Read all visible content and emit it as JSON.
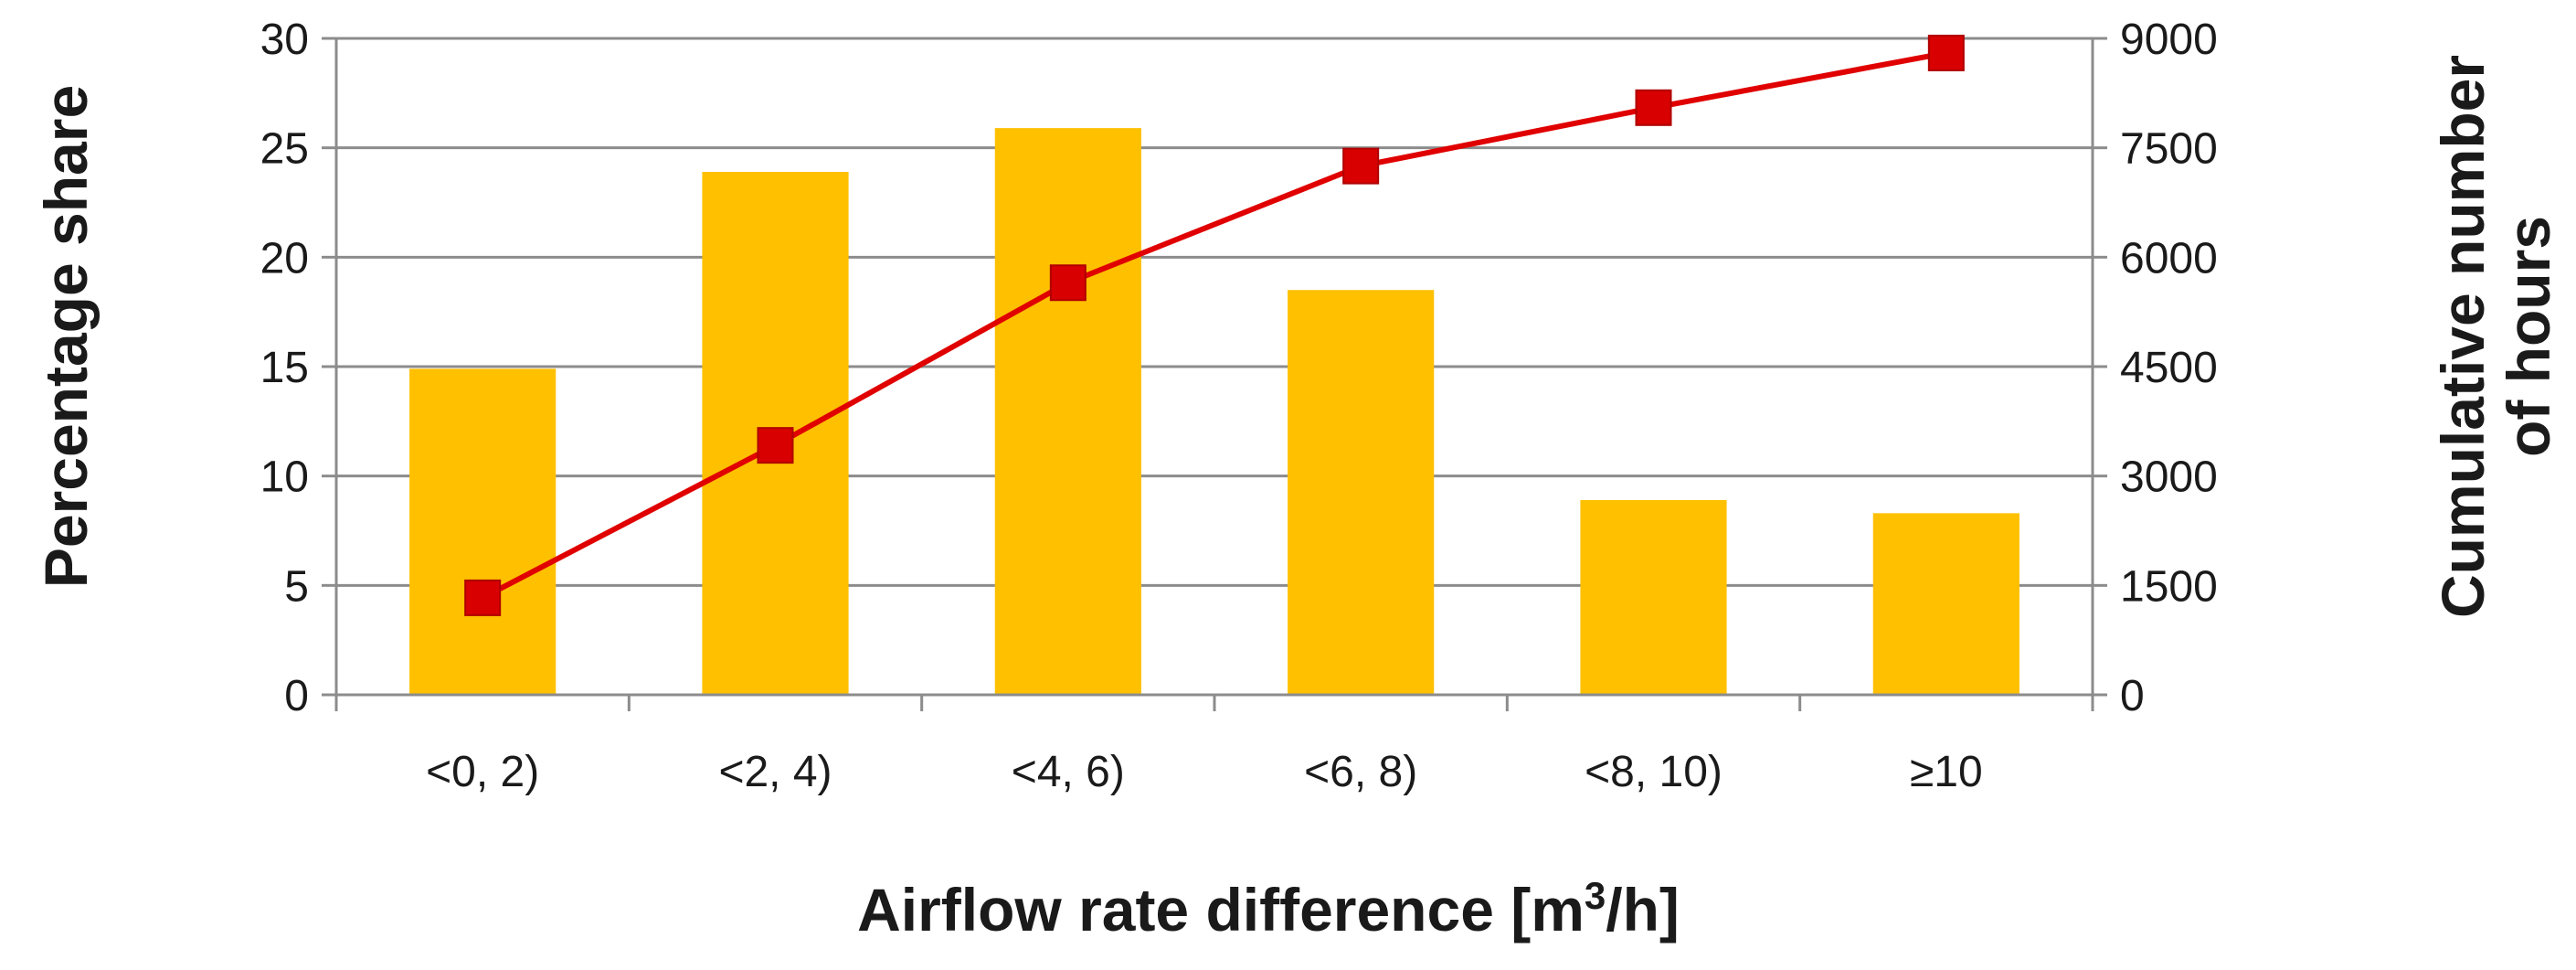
{
  "chart_data": {
    "type": "bar",
    "categories": [
      "<0, 2)",
      "<2, 4)",
      "<4, 6)",
      "<6, 8)",
      "<8, 10)",
      "≥10"
    ],
    "series": [
      {
        "name": "Percentage share",
        "type": "bar",
        "axis": "left",
        "color": "#FFC000",
        "values": [
          14.9,
          23.9,
          25.9,
          18.5,
          8.9,
          8.3
        ]
      },
      {
        "name": "Cumulative number of hours",
        "type": "line",
        "axis": "right",
        "color": "#E00000",
        "marker": "square",
        "values": [
          1330,
          3420,
          5650,
          7250,
          8050,
          8800
        ]
      }
    ],
    "left_axis": {
      "title": "Percentage share",
      "min": 0,
      "max": 30,
      "ticks": [
        0,
        5,
        10,
        15,
        20,
        25,
        30
      ]
    },
    "right_axis": {
      "title_lines": [
        "Cumulative number",
        "of hours"
      ],
      "min": 0,
      "max": 9000,
      "ticks": [
        0,
        1500,
        3000,
        4500,
        6000,
        7500,
        9000
      ]
    },
    "x_axis": {
      "title_prefix": "Airflow rate difference [m",
      "title_superscript": "3",
      "title_suffix": "/h]"
    },
    "grid": true,
    "legend": "none"
  }
}
